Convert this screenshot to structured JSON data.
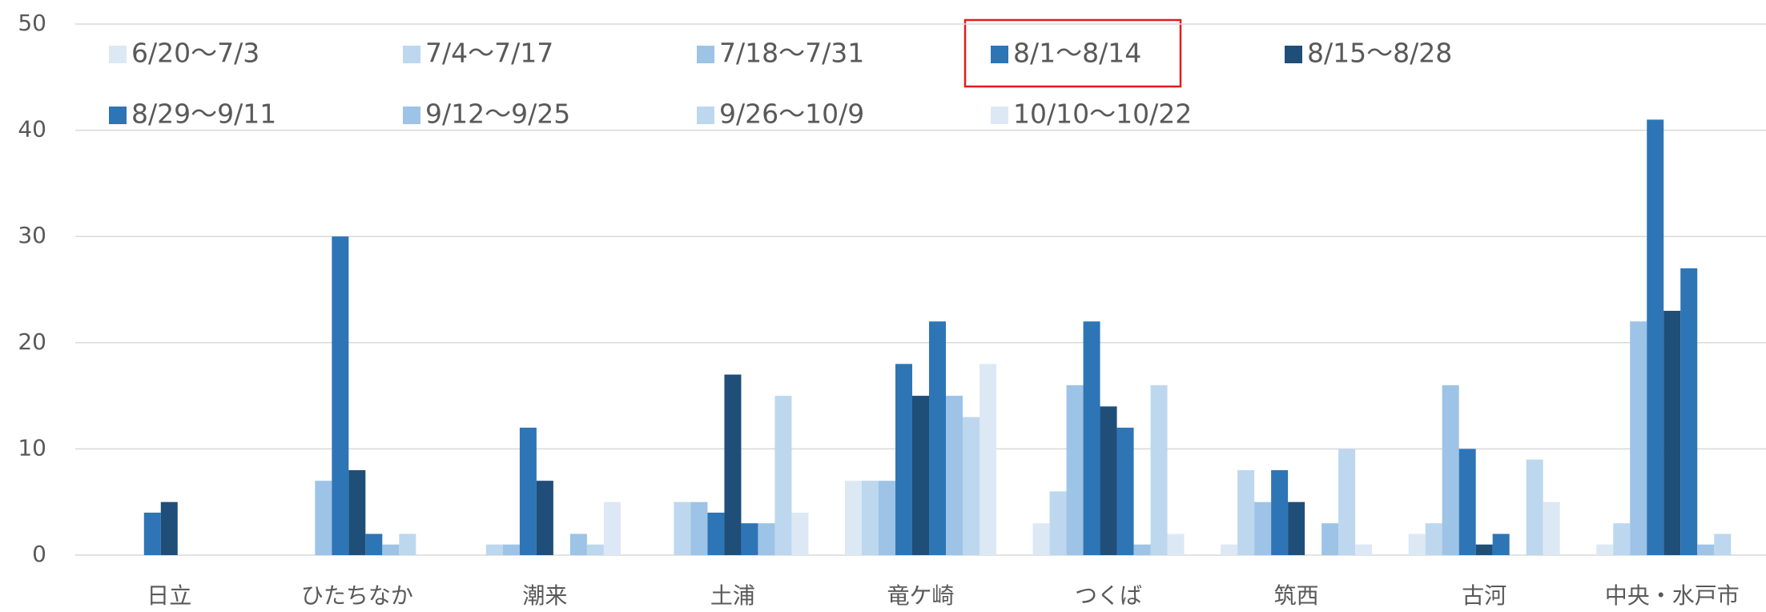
{
  "chart_data": {
    "type": "bar",
    "categories": [
      "日立",
      "ひたちなか",
      "潮来",
      "土浦",
      "竜ケ崎",
      "つくば",
      "筑西",
      "古河",
      "中央・水戸市"
    ],
    "series": [
      {
        "name": "6/20〜7/3",
        "color": "#dde8f5",
        "values": [
          0,
          0,
          0,
          0,
          7,
          3,
          1,
          2,
          1
        ]
      },
      {
        "name": "7/4〜7/17",
        "color": "#bdd7ee",
        "values": [
          0,
          0,
          1,
          5,
          7,
          6,
          8,
          3,
          3
        ]
      },
      {
        "name": "7/18〜7/31",
        "color": "#9dc3e6",
        "values": [
          0,
          7,
          1,
          5,
          7,
          16,
          5,
          16,
          22
        ]
      },
      {
        "name": "8/1〜8/14",
        "color": "#2e75b6",
        "values": [
          4,
          30,
          12,
          4,
          18,
          22,
          8,
          10,
          41
        ]
      },
      {
        "name": "8/15〜8/28",
        "color": "#1f4e79",
        "values": [
          5,
          8,
          7,
          17,
          15,
          14,
          5,
          1,
          23
        ]
      },
      {
        "name": "8/29〜9/11",
        "color": "#2e75b6",
        "values": [
          0,
          2,
          0,
          3,
          22,
          12,
          0,
          2,
          27
        ]
      },
      {
        "name": "9/12〜9/25",
        "color": "#9dc3e6",
        "values": [
          0,
          1,
          2,
          3,
          15,
          1,
          3,
          0,
          1
        ]
      },
      {
        "name": "9/26〜10/9",
        "color": "#bdd7ee",
        "values": [
          0,
          2,
          1,
          15,
          13,
          16,
          10,
          9,
          2
        ]
      },
      {
        "name": "10/10〜10/22",
        "color": "#dde8f5",
        "values": [
          0,
          0,
          5,
          4,
          18,
          2,
          1,
          5,
          0
        ]
      }
    ],
    "ylim": [
      0,
      50
    ],
    "yticks": [
      0,
      10,
      20,
      30,
      40,
      50
    ],
    "grid": true
  }
}
